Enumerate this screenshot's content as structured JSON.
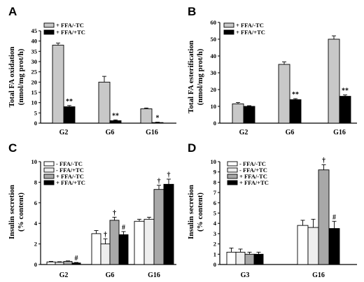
{
  "chart_data": [
    {
      "panel": "A",
      "type": "bar",
      "ylabel": [
        "Total FA oxidation",
        "(nmol/mg prot/h)"
      ],
      "ylim": [
        0,
        45
      ],
      "yticks": [
        0,
        5,
        10,
        15,
        20,
        25,
        30,
        35,
        40,
        45
      ],
      "categories": [
        "G2",
        "G6",
        "G16"
      ],
      "series": [
        {
          "name": "+ FFA/-TC",
          "fill": "#c8c8c8",
          "values": [
            38.0,
            20.0,
            7.0
          ],
          "errors": [
            1.0,
            2.8,
            0.4
          ],
          "marks": [
            "",
            "",
            ""
          ]
        },
        {
          "name": "+ FFA/+TC",
          "fill": "#000000",
          "values": [
            8.0,
            1.2,
            0.3
          ],
          "errors": [
            0.6,
            0.4,
            0.2
          ],
          "marks": [
            "**",
            "**",
            "*"
          ]
        }
      ]
    },
    {
      "panel": "B",
      "type": "bar",
      "ylabel": [
        "Total FA esterification",
        "(nmol/mg prot/h)"
      ],
      "ylim": [
        0,
        60
      ],
      "yticks": [
        0,
        10,
        20,
        30,
        40,
        50,
        60
      ],
      "categories": [
        "G2",
        "G6",
        "G16"
      ],
      "series": [
        {
          "name": "+ FFA/-TC",
          "fill": "#c8c8c8",
          "values": [
            11.5,
            35.0,
            50.0
          ],
          "errors": [
            0.8,
            1.5,
            2.0
          ],
          "marks": [
            "",
            "",
            ""
          ]
        },
        {
          "name": "+ FFA/+TC",
          "fill": "#000000",
          "values": [
            10.0,
            14.0,
            16.0
          ],
          "errors": [
            0.4,
            0.6,
            0.8
          ],
          "marks": [
            "",
            "**",
            "**"
          ]
        }
      ]
    },
    {
      "panel": "C",
      "type": "bar",
      "ylabel": [
        "Insulin secretion",
        "(% content)"
      ],
      "ylim": [
        0,
        10
      ],
      "yticks": [
        0,
        2,
        4,
        6,
        8,
        10
      ],
      "categories": [
        "G2",
        "G6",
        "G16"
      ],
      "series": [
        {
          "name": "- FFA/-TC",
          "fill": "#ffffff",
          "values": [
            0.25,
            3.0,
            4.2
          ],
          "errors": [
            0.05,
            0.3,
            0.2
          ],
          "marks": [
            "",
            "",
            ""
          ]
        },
        {
          "name": "- FFA/+TC",
          "fill": "#eeeeee",
          "values": [
            0.22,
            2.0,
            4.4
          ],
          "errors": [
            0.05,
            0.5,
            0.2
          ],
          "marks": [
            "",
            "†",
            ""
          ]
        },
        {
          "name": "+ FFA/-TC",
          "fill": "#a8a8a8",
          "values": [
            0.3,
            4.3,
            7.3
          ],
          "errors": [
            0.05,
            0.3,
            0.4
          ],
          "marks": [
            "",
            "†",
            "†"
          ]
        },
        {
          "name": "+ FFA/+TC",
          "fill": "#000000",
          "values": [
            0.15,
            2.9,
            7.8
          ],
          "errors": [
            0.05,
            0.3,
            0.5
          ],
          "marks": [
            "#",
            "#",
            "†"
          ]
        }
      ]
    },
    {
      "panel": "D",
      "type": "bar",
      "ylabel": [
        "Insulin secretion",
        "(% content)"
      ],
      "ylim": [
        0,
        10
      ],
      "yticks": [
        0,
        1,
        2,
        3,
        4,
        5,
        6,
        7,
        8,
        9,
        10
      ],
      "categories": [
        "G3",
        "G16"
      ],
      "series": [
        {
          "name": "- FFA/-TC",
          "fill": "#ffffff",
          "values": [
            1.2,
            3.8
          ],
          "errors": [
            0.4,
            0.5
          ],
          "marks": [
            "",
            ""
          ]
        },
        {
          "name": "- FFA/+TC",
          "fill": "#eeeeee",
          "values": [
            1.2,
            3.6
          ],
          "errors": [
            0.3,
            0.8
          ],
          "marks": [
            "",
            ""
          ]
        },
        {
          "name": "+ FFA/-TC",
          "fill": "#a8a8a8",
          "values": [
            1.0,
            9.2
          ],
          "errors": [
            0.2,
            0.5
          ],
          "marks": [
            "",
            "†"
          ]
        },
        {
          "name": "+ FFA/+TC",
          "fill": "#000000",
          "values": [
            1.0,
            3.5
          ],
          "errors": [
            0.2,
            0.7
          ],
          "marks": [
            "",
            "#"
          ]
        }
      ]
    }
  ]
}
